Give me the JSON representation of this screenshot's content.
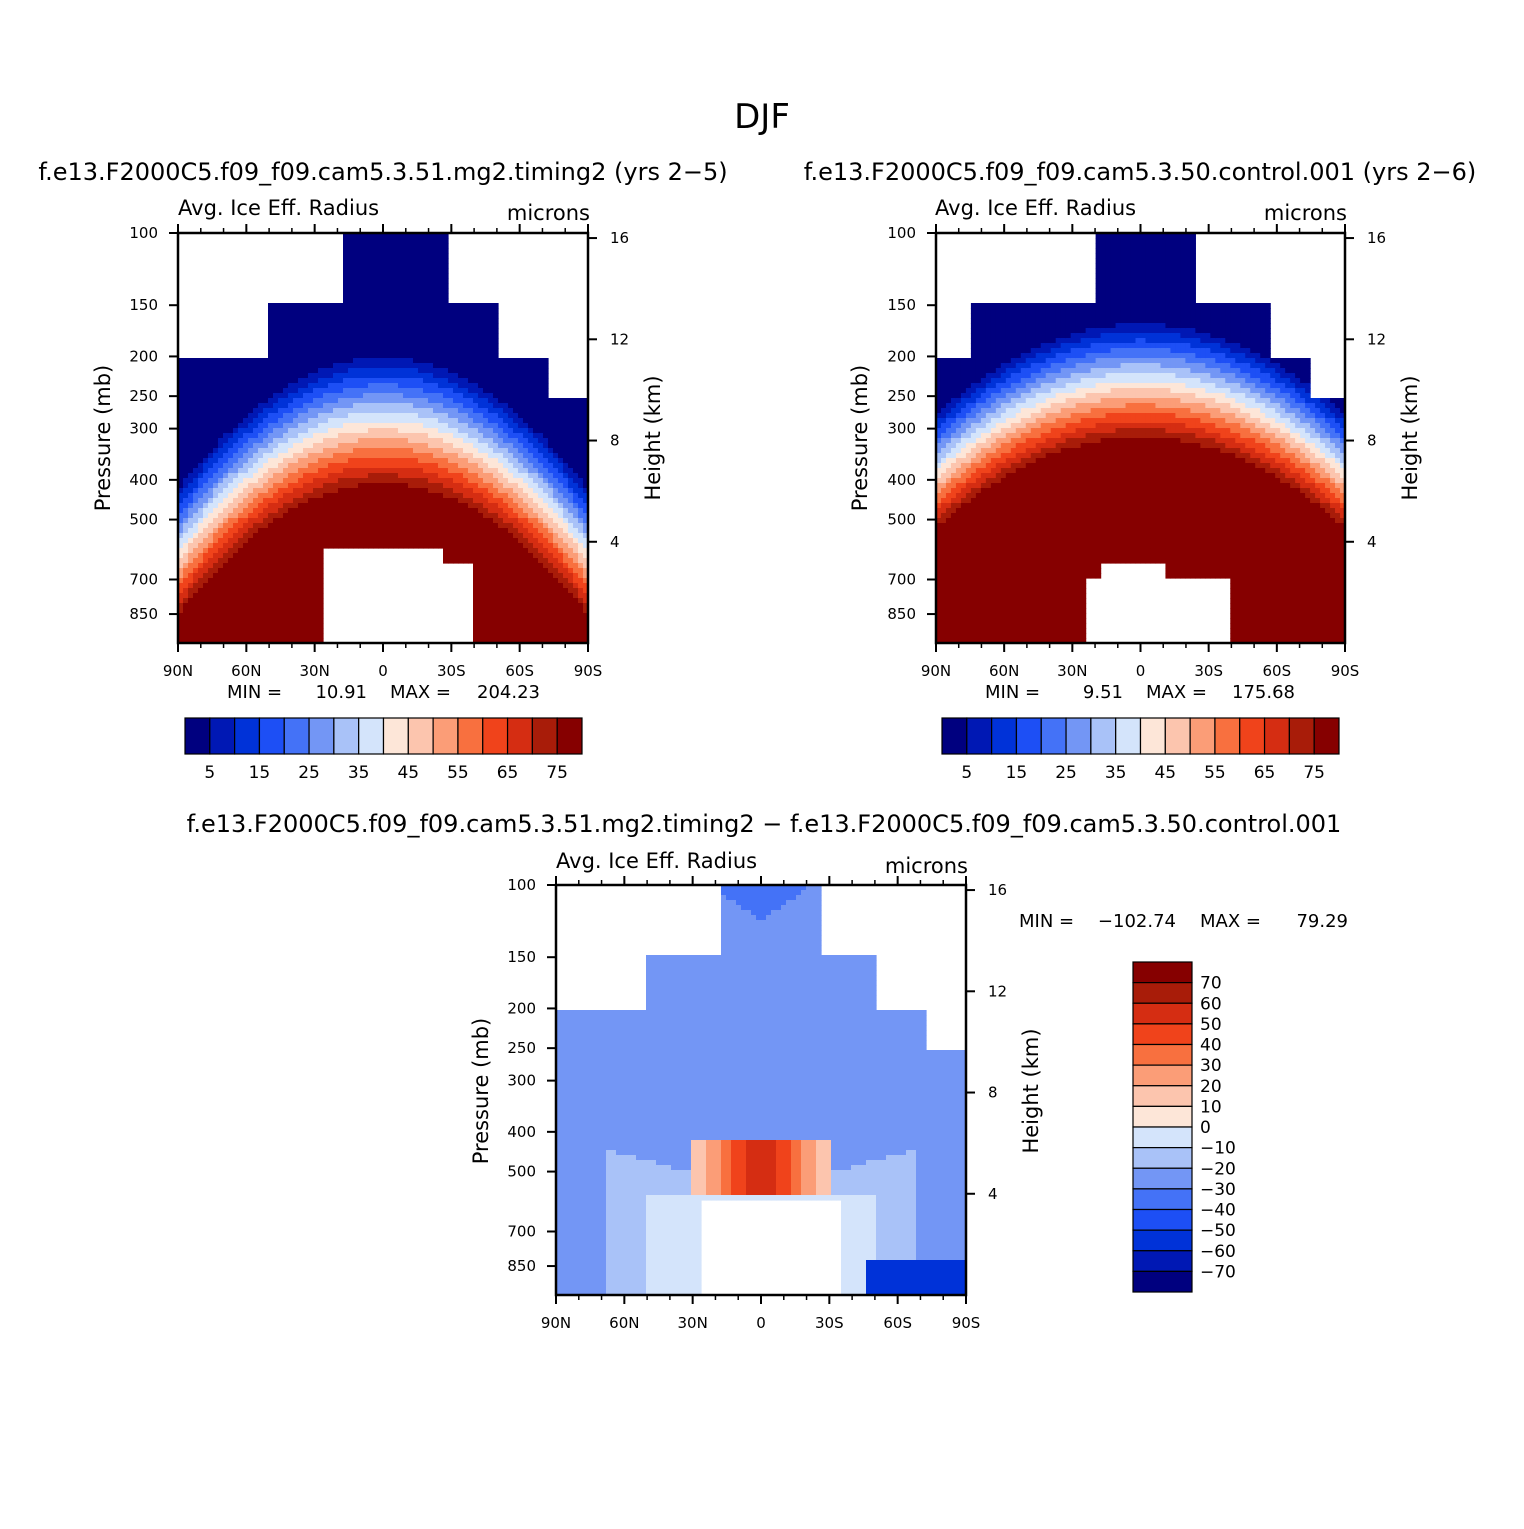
{
  "figure": {
    "title": "DJF"
  },
  "chart_data": [
    {
      "type": "heatmap",
      "title": "f.e13.F2000C5.f09_f09.cam5.3.51.mg2.timing2 (yrs 2−5)",
      "variable": "Avg. Ice Eff. Radius",
      "units": "microns",
      "xlabel": "",
      "ylabel": "Pressure (mb)",
      "ylabel_right": "Height (km)",
      "x_ticks": [
        "90N",
        "60N",
        "30N",
        "0",
        "30S",
        "60S",
        "90S"
      ],
      "y_ticks": [
        "100",
        "150",
        "200",
        "250",
        "300",
        "400",
        "500",
        "700",
        "850"
      ],
      "y_right_ticks": [
        "16",
        "12",
        "8",
        "4"
      ],
      "xlim": [
        90,
        -90
      ],
      "ylim": [
        1000,
        100
      ],
      "min_label": "MIN =",
      "min_value": "10.91",
      "max_label": "MAX =",
      "max_value": "204.23",
      "colorbar_labels": [
        "5",
        "15",
        "25",
        "35",
        "45",
        "55",
        "65",
        "75"
      ],
      "colorbar_levels": [
        5,
        10,
        15,
        20,
        25,
        30,
        35,
        40,
        45,
        50,
        55,
        60,
        65,
        70,
        75
      ],
      "summary": "values increase from ~10 microns near the tropopause to >75 microns in the lower troposphere; large values dome over the tropics"
    },
    {
      "type": "heatmap",
      "title": "f.e13.F2000C5.f09_f09.cam5.3.50.control.001 (yrs 2−6)",
      "variable": "Avg. Ice Eff. Radius",
      "units": "microns",
      "xlabel": "",
      "ylabel": "Pressure (mb)",
      "ylabel_right": "Height (km)",
      "x_ticks": [
        "90N",
        "60N",
        "30N",
        "0",
        "30S",
        "60S",
        "90S"
      ],
      "y_ticks": [
        "100",
        "150",
        "200",
        "250",
        "300",
        "400",
        "500",
        "700",
        "850"
      ],
      "y_right_ticks": [
        "16",
        "12",
        "8",
        "4"
      ],
      "xlim": [
        90,
        -90
      ],
      "ylim": [
        1000,
        100
      ],
      "min_label": "MIN =",
      "min_value": "9.51",
      "max_label": "MAX =",
      "max_value": "175.68",
      "colorbar_labels": [
        "5",
        "15",
        "25",
        "35",
        "45",
        "55",
        "65",
        "75"
      ],
      "colorbar_levels": [
        5,
        10,
        15,
        20,
        25,
        30,
        35,
        40,
        45,
        50,
        55,
        60,
        65,
        70,
        75
      ],
      "summary": "broad region >75 microns below ~300 mb, decreasing upward to ~10-20 microns near 100 mb"
    },
    {
      "type": "heatmap",
      "title": "f.e13.F2000C5.f09_f09.cam5.3.51.mg2.timing2 − f.e13.F2000C5.f09_f09.cam5.3.50.control.001",
      "variable": "Avg. Ice Eff. Radius",
      "units": "microns",
      "xlabel": "",
      "ylabel": "Pressure (mb)",
      "ylabel_right": "Height (km)",
      "x_ticks": [
        "90N",
        "60N",
        "30N",
        "0",
        "30S",
        "60S",
        "90S"
      ],
      "y_ticks": [
        "100",
        "150",
        "200",
        "250",
        "300",
        "400",
        "500",
        "700",
        "850"
      ],
      "y_right_ticks": [
        "16",
        "12",
        "8",
        "4"
      ],
      "xlim": [
        90,
        -90
      ],
      "ylim": [
        1000,
        100
      ],
      "min_label": "MIN =",
      "min_value": "−102.74",
      "max_label": "MAX =",
      "max_value": "79.29",
      "colorbar_labels": [
        "70",
        "60",
        "50",
        "40",
        "30",
        "20",
        "10",
        "0",
        "−10",
        "−20",
        "−30",
        "−40",
        "−50",
        "−60",
        "−70"
      ],
      "colorbar_levels": [
        -70,
        -60,
        -50,
        -40,
        -30,
        -20,
        -10,
        0,
        10,
        20,
        30,
        40,
        50,
        60,
        70
      ],
      "summary": "difference mostly negative (-10 to -30) throughout, with positive (+10 to +70) patch near 500 mb over the tropics"
    }
  ],
  "colors": {
    "seq": [
      "#00007f",
      "#0018b4",
      "#0032d8",
      "#1d4ff5",
      "#4472f7",
      "#7396f5",
      "#a9c2f8",
      "#d4e4fb",
      "#fde6d8",
      "#fcc5ae",
      "#fb9d77",
      "#f8703f",
      "#f0431b",
      "#d52d12",
      "#a81c09",
      "#860000"
    ]
  }
}
